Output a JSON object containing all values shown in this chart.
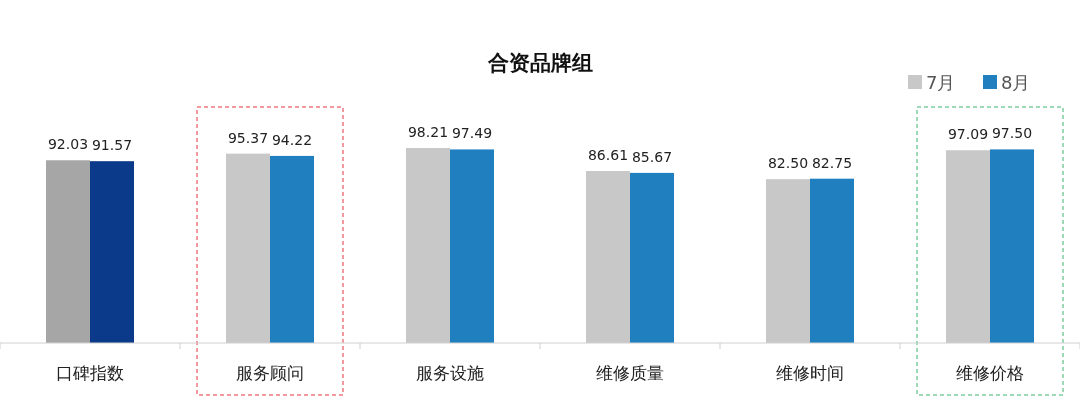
{
  "chart_data": {
    "type": "bar",
    "title": "合资品牌组",
    "categories": [
      "口碑指数",
      "服务顾问",
      "服务设施",
      "维修质量",
      "维修时间",
      "维修价格"
    ],
    "series": [
      {
        "name": "7月",
        "color": "#c8c8c8",
        "colors": [
          "#a6a6a6",
          "#c8c8c8",
          "#c8c8c8",
          "#c8c8c8",
          "#c8c8c8",
          "#c8c8c8"
        ],
        "values": [
          92.03,
          95.37,
          98.21,
          86.61,
          82.5,
          97.09
        ],
        "value_labels": [
          "92.03",
          "95.37",
          "98.21",
          "86.61",
          "82.50",
          "97.09"
        ]
      },
      {
        "name": "8月",
        "color": "#1f7fbf",
        "colors": [
          "#0b3a8a",
          "#1f7fbf",
          "#1f7fbf",
          "#1f7fbf",
          "#1f7fbf",
          "#1f7fbf"
        ],
        "values": [
          91.57,
          94.22,
          97.49,
          85.67,
          82.75,
          97.5
        ],
        "value_labels": [
          "91.57",
          "94.22",
          "97.49",
          "85.67",
          "82.75",
          "97.50"
        ]
      }
    ],
    "tick_labels": "x",
    "grid": false,
    "legend": "top right"
  }
}
